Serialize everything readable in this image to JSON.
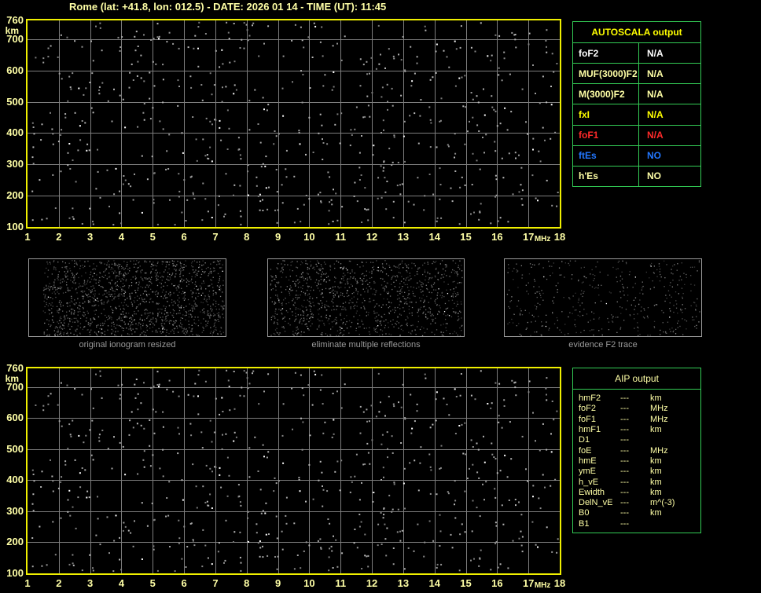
{
  "title": "Rome (lat: +41.8, lon: 012.5) - DATE: 2026 01 14 - TIME (UT): 11:45",
  "colors": {
    "background": "#000000",
    "title_text": "#ffffa6",
    "plot_border": "#f0f000",
    "grid": "#7d7d7d",
    "noise_gray": "#9a9a9a",
    "table_border": "#33cc55",
    "bright_yellow": "#ffff00",
    "pale_yellow": "#ffffa6",
    "white": "#ffffff",
    "red": "#ff2a2a",
    "blue": "#2277ff",
    "caption_gray": "#9a9a9a"
  },
  "axes": {
    "x_ticks": [
      "1",
      "2",
      "3",
      "4",
      "5",
      "6",
      "7",
      "8",
      "9",
      "10",
      "11",
      "12",
      "13",
      "14",
      "15",
      "16",
      "17",
      "18"
    ],
    "x_unit_label": "MHz",
    "y_ticks": [
      "760",
      "700",
      "600",
      "500",
      "400",
      "300",
      "200",
      "100"
    ],
    "y_unit_label": "km",
    "x_range_mhz": [
      1,
      18
    ],
    "y_range_km": [
      100,
      760
    ]
  },
  "autoscala_table": {
    "title": "AUTOSCALA output",
    "rows": [
      {
        "label": "foF2",
        "value": "N/A",
        "color": "white"
      },
      {
        "label": "MUF(3000)F2",
        "value": "N/A",
        "color": "pale_yellow"
      },
      {
        "label": "M(3000)F2",
        "value": "N/A",
        "color": "pale_yellow"
      },
      {
        "label": "fxI",
        "value": "N/A",
        "color": "bright_yellow"
      },
      {
        "label": "foF1",
        "value": "N/A",
        "color": "red"
      },
      {
        "label": "ftEs",
        "value": "NO",
        "color": "blue"
      },
      {
        "label": "h'Es",
        "value": "NO",
        "color": "pale_yellow"
      }
    ]
  },
  "panels": [
    {
      "caption": "original ionogram resized"
    },
    {
      "caption": "eliminate multiple reflections"
    },
    {
      "caption": "evidence F2 trace"
    }
  ],
  "aip_table": {
    "title": "AIP output",
    "rows": [
      {
        "label": "hmF2",
        "value": "---",
        "unit": "km"
      },
      {
        "label": "foF2",
        "value": "---",
        "unit": "MHz"
      },
      {
        "label": "foF1",
        "value": "---",
        "unit": "MHz"
      },
      {
        "label": "hmF1",
        "value": "---",
        "unit": "km"
      },
      {
        "label": "D1",
        "value": "---",
        "unit": ""
      },
      {
        "label": "foE",
        "value": "---",
        "unit": "MHz"
      },
      {
        "label": "hmE",
        "value": "---",
        "unit": "km"
      },
      {
        "label": "ymE",
        "value": "---",
        "unit": "km"
      },
      {
        "label": "h_vE",
        "value": "---",
        "unit": "km"
      },
      {
        "label": "Ewidth",
        "value": "---",
        "unit": "km"
      },
      {
        "label": "DelN_vE",
        "value": "---",
        "unit": "m^(-3)"
      },
      {
        "label": "B0",
        "value": "---",
        "unit": "km"
      },
      {
        "label": "B1",
        "value": "---",
        "unit": ""
      }
    ]
  }
}
